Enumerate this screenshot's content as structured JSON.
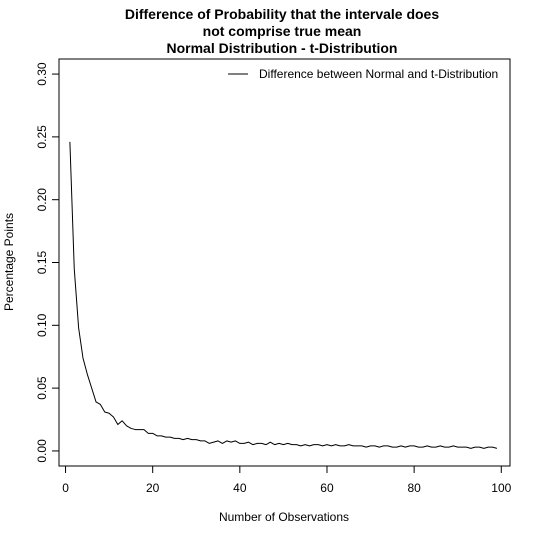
{
  "chart_data": {
    "type": "line",
    "title_lines": [
      "Difference of Probability that the intervale does",
      "not comprise true mean",
      "Normal Distribution - t-Distribution"
    ],
    "xlabel": "Number of Observations",
    "ylabel": "Percentage Points",
    "xlim": [
      -1.5,
      102
    ],
    "ylim": [
      -0.012,
      0.312
    ],
    "x_ticks": [
      0,
      20,
      40,
      60,
      80,
      100
    ],
    "x_tick_labels": [
      "0",
      "20",
      "40",
      "60",
      "80",
      "100"
    ],
    "y_ticks": [
      0.0,
      0.05,
      0.1,
      0.15,
      0.2,
      0.25,
      0.3
    ],
    "y_tick_labels": [
      "0.00",
      "0.05",
      "0.10",
      "0.15",
      "0.20",
      "0.25",
      "0.30"
    ],
    "legend_position": "top-right",
    "grid": false,
    "series": [
      {
        "name": "Difference between Normal and t-Distribution",
        "color": "#000000",
        "x": [
          1,
          2,
          3,
          4,
          5,
          6,
          7,
          8,
          9,
          10,
          11,
          12,
          13,
          14,
          15,
          16,
          17,
          18,
          19,
          20,
          21,
          22,
          23,
          24,
          25,
          26,
          27,
          28,
          29,
          30,
          31,
          32,
          33,
          34,
          35,
          36,
          37,
          38,
          39,
          40,
          41,
          42,
          43,
          44,
          45,
          46,
          47,
          48,
          49,
          50,
          51,
          52,
          53,
          54,
          55,
          56,
          57,
          58,
          59,
          60,
          61,
          62,
          63,
          64,
          65,
          66,
          67,
          68,
          69,
          70,
          71,
          72,
          73,
          74,
          75,
          76,
          77,
          78,
          79,
          80,
          81,
          82,
          83,
          84,
          85,
          86,
          87,
          88,
          89,
          90,
          91,
          92,
          93,
          94,
          95,
          96,
          97,
          98,
          99
        ],
        "values": [
          0.246,
          0.145,
          0.098,
          0.074,
          0.061,
          0.05,
          0.039,
          0.037,
          0.031,
          0.03,
          0.027,
          0.021,
          0.024,
          0.02,
          0.018,
          0.017,
          0.017,
          0.017,
          0.014,
          0.014,
          0.012,
          0.012,
          0.011,
          0.011,
          0.01,
          0.01,
          0.009,
          0.01,
          0.009,
          0.009,
          0.008,
          0.008,
          0.006,
          0.007,
          0.008,
          0.006,
          0.008,
          0.007,
          0.008,
          0.006,
          0.006,
          0.007,
          0.005,
          0.006,
          0.006,
          0.005,
          0.007,
          0.005,
          0.006,
          0.005,
          0.006,
          0.005,
          0.005,
          0.004,
          0.005,
          0.004,
          0.005,
          0.005,
          0.004,
          0.005,
          0.004,
          0.005,
          0.004,
          0.004,
          0.005,
          0.004,
          0.004,
          0.004,
          0.003,
          0.004,
          0.004,
          0.003,
          0.004,
          0.004,
          0.003,
          0.003,
          0.004,
          0.003,
          0.004,
          0.004,
          0.003,
          0.003,
          0.004,
          0.003,
          0.003,
          0.004,
          0.003,
          0.003,
          0.004,
          0.003,
          0.003,
          0.003,
          0.002,
          0.003,
          0.003,
          0.002,
          0.003,
          0.003,
          0.002
        ]
      }
    ]
  }
}
